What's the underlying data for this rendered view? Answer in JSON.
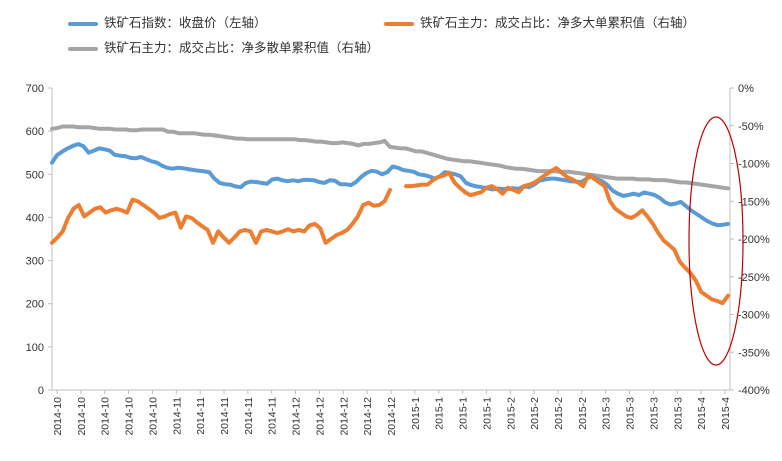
{
  "chart_data": {
    "type": "line",
    "title": "",
    "legend": [
      {
        "name": "铁矿石指数：收盘价（左轴）",
        "color": "#5b9bd5",
        "axis": "left"
      },
      {
        "name": "铁矿石主力：成交占比：净多大单累积值（右轴）",
        "color": "#ed7d31",
        "axis": "right"
      },
      {
        "name": "铁矿石主力：成交占比：净多散单累积值（右轴）",
        "color": "#a5a5a5",
        "axis": "right"
      }
    ],
    "left_axis": {
      "min": 0,
      "max": 700,
      "ticks": [
        "700",
        "600",
        "500",
        "400",
        "300",
        "200",
        "100",
        "0"
      ]
    },
    "right_axis": {
      "min": -400,
      "max": 0,
      "unit": "%",
      "ticks": [
        "0%",
        "-50%",
        "-100%",
        "-150%",
        "-200%",
        "-250%",
        "-300%",
        "-350%",
        "-400%"
      ]
    },
    "x_tick_labels": [
      "2014-10",
      "2014-10",
      "2014-10",
      "2014-10",
      "2014-10",
      "2014-11",
      "2014-11",
      "2014-11",
      "2014-11",
      "2014-11",
      "2014-12",
      "2014-12",
      "2014-12",
      "2014-12",
      "2014-12",
      "2015-1",
      "2015-1",
      "2015-1",
      "2015-1",
      "2015-2",
      "2015-2",
      "2015-2",
      "2015-2",
      "2015-3",
      "2015-3",
      "2015-3",
      "2015-3",
      "2015-4",
      "2015-4"
    ],
    "series": [
      {
        "name": "铁矿石指数：收盘价（左轴）",
        "axis": "left",
        "color": "#5b9bd5",
        "values": [
          527,
          545,
          553,
          560,
          566,
          570,
          565,
          550,
          555,
          560,
          558,
          555,
          545,
          543,
          542,
          538,
          537,
          540,
          535,
          530,
          527,
          520,
          515,
          513,
          515,
          514,
          512,
          510,
          508,
          507,
          505,
          490,
          480,
          477,
          476,
          472,
          470,
          480,
          483,
          482,
          480,
          478,
          488,
          490,
          486,
          484,
          486,
          484,
          487,
          487,
          486,
          482,
          480,
          486,
          485,
          477,
          477,
          475,
          482,
          494,
          503,
          508,
          506,
          500,
          505,
          518,
          515,
          510,
          508,
          506,
          500,
          498,
          495,
          490,
          495,
          505,
          502,
          500,
          495,
          480,
          475,
          472,
          470,
          468,
          465,
          467,
          466,
          466,
          468,
          466,
          472,
          470,
          476,
          485,
          488,
          490,
          490,
          488,
          486,
          484,
          483,
          482,
          490,
          495,
          488,
          484,
          475,
          462,
          455,
          450,
          452,
          455,
          452,
          458,
          455,
          452,
          445,
          435,
          430,
          432,
          436,
          426,
          416,
          408,
          400,
          392,
          386,
          382,
          383,
          385
        ]
      },
      {
        "name": "铁矿石主力：成交占比：净多大单累积值（右轴）",
        "axis": "right",
        "color": "#ed7d31",
        "values": [
          -205,
          -198,
          -190,
          -172,
          -160,
          -155,
          -170,
          -165,
          -160,
          -158,
          -165,
          -162,
          -160,
          -162,
          -165,
          -148,
          -150,
          -155,
          -160,
          -165,
          -172,
          -170,
          -167,
          -165,
          -185,
          -170,
          -172,
          -178,
          -183,
          -188,
          -205,
          -190,
          -198,
          -205,
          -198,
          -190,
          -188,
          -190,
          -205,
          -190,
          -188,
          -190,
          -192,
          -190,
          -187,
          -190,
          -188,
          -190,
          -182,
          -180,
          -186,
          -205,
          -200,
          -195,
          -192,
          -188,
          -180,
          -170,
          -155,
          -152,
          -156,
          -155,
          -150,
          -135,
          null,
          null,
          -130,
          -130,
          -129,
          -128,
          -128,
          -122,
          -118,
          -116,
          -112,
          -125,
          -132,
          -138,
          -142,
          -140,
          -138,
          -132,
          -130,
          -134,
          -140,
          -132,
          -135,
          -138,
          -130,
          -128,
          -125,
          -120,
          -115,
          -110,
          -106,
          -112,
          -118,
          -121,
          -125,
          -130,
          -115,
          -120,
          -125,
          -130,
          -150,
          -160,
          -165,
          -170,
          -172,
          -168,
          -162,
          -170,
          -180,
          -192,
          -202,
          -208,
          -214,
          -230,
          -238,
          -245,
          -255,
          -270,
          -275,
          -280,
          -282,
          -285,
          -275
        ]
      },
      {
        "name": "铁矿石主力：成交占比：净多散单累积值（右轴）",
        "axis": "right",
        "color": "#a5a5a5",
        "values": [
          -54,
          -53,
          -51,
          -51,
          -51,
          -52,
          -52,
          -52,
          -53,
          -54,
          -54,
          -54,
          -55,
          -55,
          -55,
          -56,
          -56,
          -55,
          -55,
          -55,
          -55,
          -55,
          -58,
          -58,
          -60,
          -60,
          -60,
          -60,
          -61,
          -62,
          -62,
          -63,
          -64,
          -65,
          -66,
          -67,
          -67,
          -68,
          -68,
          -68,
          -68,
          -68,
          -68,
          -68,
          -68,
          -68,
          -68,
          -69,
          -69,
          -70,
          -71,
          -71,
          -72,
          -73,
          -73,
          -72,
          -73,
          -74,
          -76,
          -74,
          -74,
          -73,
          -72,
          -70,
          -78,
          -79,
          -80,
          -80,
          -82,
          -84,
          -84,
          -86,
          -88,
          -90,
          -92,
          -94,
          -95,
          -96,
          -97,
          -97,
          -98,
          -99,
          -100,
          -101,
          -102,
          -103,
          -105,
          -106,
          -107,
          -107,
          -108,
          -109,
          -110,
          -110,
          -110,
          -110,
          -111,
          -111,
          -111,
          -112,
          -113,
          -114,
          -115,
          -116,
          -117,
          -118,
          -119,
          -120,
          -120,
          -120,
          -120,
          -121,
          -121,
          -121,
          -122,
          -122,
          -122,
          -123,
          -124,
          -125,
          -125,
          -126,
          -127,
          -128,
          -129,
          -130,
          -131,
          -132,
          -133
        ]
      }
    ],
    "annotation": {
      "type": "ellipse",
      "color": "#c00000",
      "label": ""
    }
  }
}
